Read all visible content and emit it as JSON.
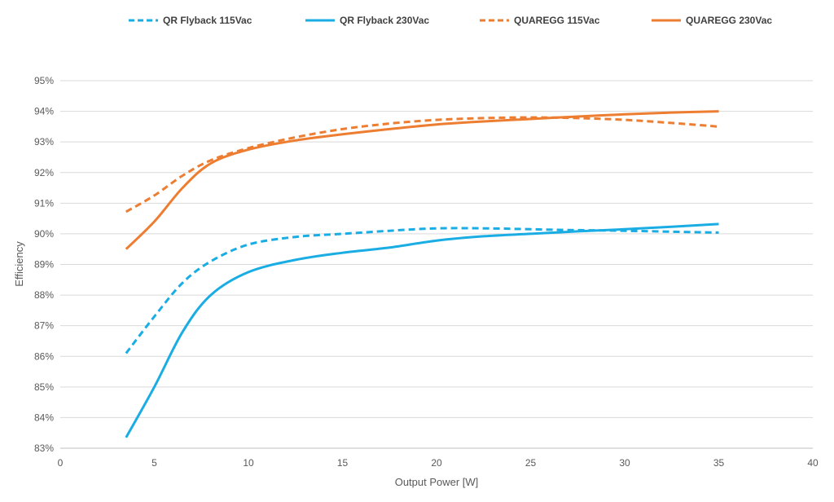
{
  "chart_data": {
    "type": "line",
    "title": "",
    "xlabel": "Output Power [W]",
    "ylabel": "Efficiency",
    "xlim": [
      0,
      40
    ],
    "ylim": [
      83,
      95
    ],
    "x_ticks": [
      0,
      5,
      10,
      15,
      20,
      25,
      30,
      35,
      40
    ],
    "y_ticks": [
      83,
      84,
      85,
      86,
      87,
      88,
      89,
      90,
      91,
      92,
      93,
      94,
      95
    ],
    "x_tick_labels": [
      "0",
      "5",
      "10",
      "15",
      "20",
      "25",
      "30",
      "35",
      "40"
    ],
    "y_tick_labels": [
      "83%",
      "84%",
      "85%",
      "86%",
      "87%",
      "88%",
      "89%",
      "90%",
      "91%",
      "92%",
      "93%",
      "94%",
      "95%"
    ],
    "grid": "horizontal",
    "legend_position": "top",
    "series": [
      {
        "name": "QR Flyback 115Vac",
        "color": "#1AADE4",
        "dash": true,
        "x": [
          3.5,
          5,
          6.5,
          8,
          10,
          12.5,
          15,
          17.5,
          20,
          22.5,
          25,
          27.5,
          30,
          32.5,
          35
        ],
        "y": [
          86.1,
          87.3,
          88.4,
          89.1,
          89.65,
          89.9,
          90.0,
          90.1,
          90.18,
          90.18,
          90.15,
          90.12,
          90.1,
          90.07,
          90.04
        ]
      },
      {
        "name": "QR Flyback 230Vac",
        "color": "#1AADE4",
        "dash": false,
        "x": [
          3.5,
          5,
          6.5,
          8,
          10,
          12.5,
          15,
          17.5,
          20,
          22.5,
          25,
          27.5,
          30,
          32.5,
          35
        ],
        "y": [
          83.35,
          85.0,
          86.8,
          88.0,
          88.75,
          89.15,
          89.38,
          89.55,
          89.78,
          89.92,
          90.0,
          90.08,
          90.15,
          90.23,
          90.32
        ]
      },
      {
        "name": "QUAREGG 115Vac",
        "color": "#ED7D31",
        "dash": true,
        "x": [
          3.5,
          5,
          6.5,
          8,
          10,
          12.5,
          15,
          17.5,
          20,
          22.5,
          25,
          27.5,
          30,
          32.5,
          35
        ],
        "y": [
          90.72,
          91.25,
          91.9,
          92.4,
          92.8,
          93.15,
          93.42,
          93.6,
          93.72,
          93.78,
          93.8,
          93.78,
          93.72,
          93.62,
          93.5
        ]
      },
      {
        "name": "QUAREGG 230Vac",
        "color": "#ED7D31",
        "dash": false,
        "x": [
          3.5,
          5,
          6.5,
          8,
          10,
          12.5,
          15,
          17.5,
          20,
          22.5,
          25,
          27.5,
          30,
          32.5,
          35
        ],
        "y": [
          89.5,
          90.4,
          91.5,
          92.3,
          92.75,
          93.05,
          93.25,
          93.42,
          93.57,
          93.67,
          93.75,
          93.83,
          93.9,
          93.96,
          94.0
        ]
      }
    ]
  }
}
